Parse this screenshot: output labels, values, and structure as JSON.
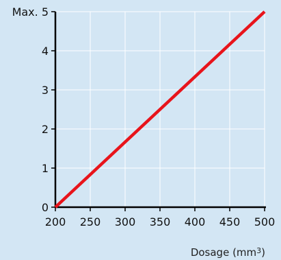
{
  "chart_data": {
    "type": "line",
    "title": "",
    "xlabel": "Dosage (mm",
    "xlabel_superscript": "3",
    "xlabel_suffix": ")",
    "ylabel": "",
    "xlim": [
      200,
      500
    ],
    "ylim": [
      0,
      5
    ],
    "x_ticks": [
      200,
      250,
      300,
      350,
      400,
      450,
      500
    ],
    "y_ticks": [
      0,
      1,
      2,
      3,
      4,
      5
    ],
    "y_top_label_prefix": "Max.",
    "grid": true,
    "legend": "none",
    "series": [
      {
        "color": "#e8141b",
        "x": [
          200,
          500
        ],
        "y": [
          0,
          5
        ]
      }
    ]
  },
  "colors": {
    "background": "#d3e6f4",
    "grid": "#ffffff",
    "axis": "#000000",
    "line": "#e8141b"
  }
}
